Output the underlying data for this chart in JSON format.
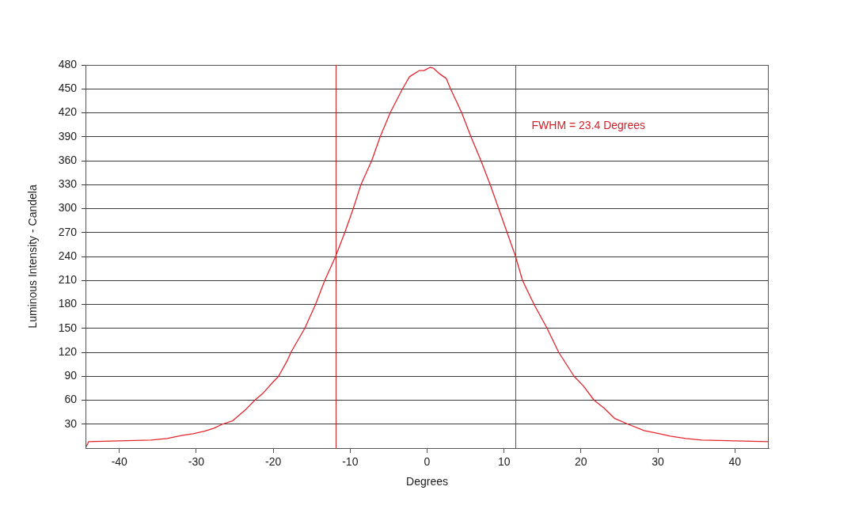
{
  "chart_data": {
    "type": "line",
    "xlabel": "Degrees",
    "ylabel": "Luminous Intensity - Candela",
    "annotations": [
      "FWHM = 23.4 Degrees"
    ],
    "x": [
      -44.4,
      -44.0,
      -40.0,
      -35.9,
      -33.8,
      -31.8,
      -30.4,
      -29.0,
      -27.7,
      -26.6,
      -25.3,
      -23.6,
      -22.4,
      -21.3,
      -20.0,
      -19.3,
      -18.1,
      -17.7,
      -15.9,
      -14.5,
      -13.3,
      -11.9,
      -10.7,
      -9.6,
      -8.6,
      -7.2,
      -6.1,
      -4.8,
      -3.2,
      -2.3,
      -2.0,
      -1.0,
      -0.4,
      0.4,
      0.8,
      1.6,
      2.5,
      3.0,
      4.5,
      5.7,
      7.0,
      8.2,
      9.3,
      10.4,
      11.5,
      12.4,
      13.9,
      15.6,
      17.1,
      19.1,
      20.3,
      21.7,
      23.0,
      24.4,
      26.1,
      28.2,
      30.2,
      31.6,
      33.6,
      35.7,
      40.0,
      44.4
    ],
    "series": [
      {
        "color": "#e3262d",
        "values": [
          0,
          8,
          9,
          10,
          12,
          16,
          18,
          21,
          25,
          30,
          34,
          48,
          60,
          69,
          83,
          90,
          111,
          120,
          150,
          180,
          210,
          240,
          270,
          300,
          330,
          360,
          390,
          420,
          450,
          465,
          467,
          473,
          473,
          477,
          476,
          469,
          463,
          451,
          420,
          390,
          360,
          330,
          300,
          270,
          240,
          210,
          180,
          150,
          120,
          90,
          78,
          60,
          50,
          37,
          30,
          22,
          18,
          15,
          12,
          10,
          9,
          8
        ]
      }
    ],
    "xlim": [
      -44.4,
      44.4
    ],
    "ylim": [
      0,
      480
    ],
    "xticks": [
      -40,
      -30,
      -20,
      -10,
      0,
      10,
      20,
      30,
      40
    ],
    "yticks": [
      30,
      60,
      90,
      120,
      150,
      180,
      210,
      240,
      270,
      300,
      330,
      360,
      390,
      420,
      450,
      480
    ],
    "ref_lines": [
      {
        "axis": "x",
        "value": -11.9,
        "color": "#d42027"
      },
      {
        "axis": "x",
        "value": 11.5,
        "color": "#d42027"
      }
    ],
    "grid": "y",
    "marker": "none"
  }
}
